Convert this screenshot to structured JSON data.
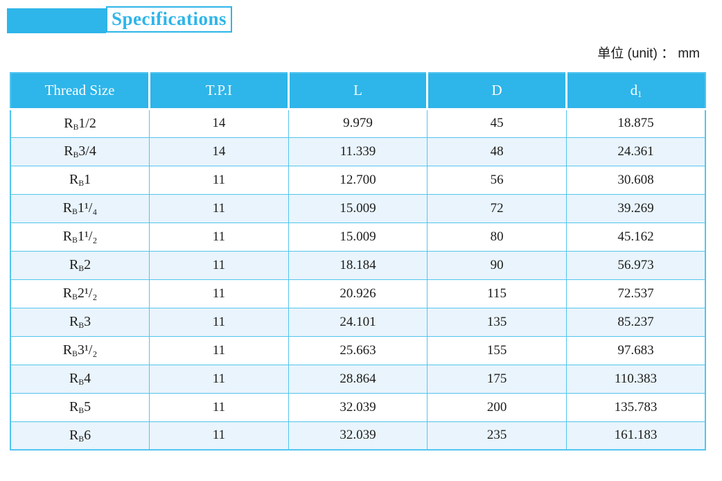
{
  "page": {
    "title": "Specifications",
    "unit_label": "单位 (unit) ： mm"
  },
  "colors": {
    "accent_cyan": "#2eb5e9",
    "grid_border_cyan": "#52c5ef",
    "alt_row_blue": "#e9f4fc",
    "header_text": "#fdfeff",
    "body_text": "#1c1c1c"
  },
  "table": {
    "headers": [
      {
        "label": "Thread Size"
      },
      {
        "label": "T.P.I"
      },
      {
        "label": "L"
      },
      {
        "label": "D"
      },
      {
        "label": "d",
        "sub": "1"
      }
    ],
    "rows": [
      {
        "thread": {
          "pre": "R",
          "sub": "B",
          "size": "1/2"
        },
        "values": [
          "14",
          "9.979",
          "45",
          "18.875"
        ]
      },
      {
        "thread": {
          "pre": "R",
          "sub": "B",
          "size": "3/4"
        },
        "values": [
          "14",
          "11.339",
          "48",
          "24.361"
        ]
      },
      {
        "thread": {
          "pre": "R",
          "sub": "B",
          "size": "1"
        },
        "values": [
          "11",
          "12.700",
          "56",
          "30.608"
        ]
      },
      {
        "thread": {
          "pre": "R",
          "sub": "B",
          "size": "1¹/₄"
        },
        "values": [
          "11",
          "15.009",
          "72",
          "39.269"
        ]
      },
      {
        "thread": {
          "pre": "R",
          "sub": "B",
          "size": "1¹/₂"
        },
        "values": [
          "11",
          "15.009",
          "80",
          "45.162"
        ]
      },
      {
        "thread": {
          "pre": "R",
          "sub": "B",
          "size": "2"
        },
        "values": [
          "11",
          "18.184",
          "90",
          "56.973"
        ]
      },
      {
        "thread": {
          "pre": "R",
          "sub": "B",
          "size": "2¹/₂"
        },
        "values": [
          "11",
          "20.926",
          "115",
          "72.537"
        ]
      },
      {
        "thread": {
          "pre": "R",
          "sub": "B",
          "size": "3"
        },
        "values": [
          "11",
          "24.101",
          "135",
          "85.237"
        ]
      },
      {
        "thread": {
          "pre": "R",
          "sub": "B",
          "size": "3¹/₂"
        },
        "values": [
          "11",
          "25.663",
          "155",
          "97.683"
        ]
      },
      {
        "thread": {
          "pre": "R",
          "sub": "B",
          "size": "4"
        },
        "values": [
          "11",
          "28.864",
          "175",
          "110.383"
        ]
      },
      {
        "thread": {
          "pre": "R",
          "sub": "B",
          "size": "5"
        },
        "values": [
          "11",
          "32.039",
          "200",
          "135.783"
        ]
      },
      {
        "thread": {
          "pre": "R",
          "sub": "B",
          "size": "6"
        },
        "values": [
          "11",
          "32.039",
          "235",
          "161.183"
        ]
      }
    ]
  }
}
